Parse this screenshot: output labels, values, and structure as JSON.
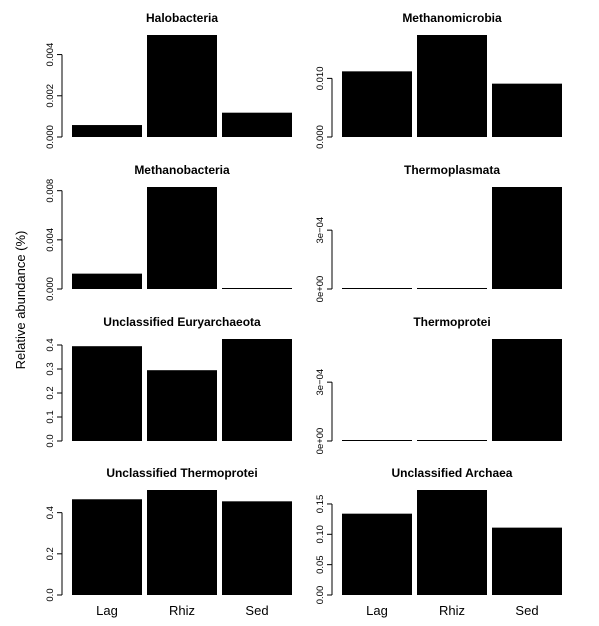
{
  "ylabel": "Relative abundance (%)",
  "colors": {
    "bar": "#000000",
    "background": "#ffffff"
  },
  "chart_data": [
    {
      "type": "bar",
      "title": "Halobacteria",
      "categories": [
        "Lag",
        "Rhiz",
        "Sed"
      ],
      "values": [
        0.00058,
        0.00495,
        0.00118
      ],
      "ylim": [
        0,
        0.00495
      ],
      "yticks": [
        0,
        0.002,
        0.004
      ],
      "yticklabels": [
        "0.000",
        "0.002",
        "0.004"
      ],
      "show_xticklabels": false
    },
    {
      "type": "bar",
      "title": "Methanomicrobia",
      "categories": [
        "Lag",
        "Rhiz",
        "Sed"
      ],
      "values": [
        0.0112,
        0.0174,
        0.0091
      ],
      "ylim": [
        0,
        0.0174
      ],
      "yticks": [
        0,
        0.01
      ],
      "yticklabels": [
        "0.000",
        "0.010"
      ],
      "show_xticklabels": false
    },
    {
      "type": "bar",
      "title": "Methanobacteria",
      "categories": [
        "Lag",
        "Rhiz",
        "Sed"
      ],
      "values": [
        0.00125,
        0.0083,
        0.0
      ],
      "ylim": [
        0,
        0.0083
      ],
      "yticks": [
        0,
        0.004,
        0.008
      ],
      "yticklabels": [
        "0.000",
        "0.004",
        "0.008"
      ],
      "show_xticklabels": false
    },
    {
      "type": "bar",
      "title": "Thermoplasmata",
      "categories": [
        "Lag",
        "Rhiz",
        "Sed"
      ],
      "values": [
        0.0,
        0.0,
        0.00052
      ],
      "ylim": [
        0,
        0.00052
      ],
      "yticks": [
        0,
        0.0003
      ],
      "yticklabels": [
        "0e+00",
        "3e−04"
      ],
      "show_xticklabels": false
    },
    {
      "type": "bar",
      "title": "Unclassified Euryarchaeota",
      "categories": [
        "Lag",
        "Rhiz",
        "Sed"
      ],
      "values": [
        0.395,
        0.295,
        0.425
      ],
      "ylim": [
        0,
        0.425
      ],
      "yticks": [
        0,
        0.1,
        0.2,
        0.3,
        0.4
      ],
      "yticklabels": [
        "0.0",
        "0.1",
        "0.2",
        "0.3",
        "0.4"
      ],
      "show_xticklabels": false
    },
    {
      "type": "bar",
      "title": "Thermoprotei",
      "categories": [
        "Lag",
        "Rhiz",
        "Sed"
      ],
      "values": [
        0.0,
        0.0,
        0.00052
      ],
      "ylim": [
        0,
        0.00052
      ],
      "yticks": [
        0,
        0.0003
      ],
      "yticklabels": [
        "0e+00",
        "3e−04"
      ],
      "show_xticklabels": false
    },
    {
      "type": "bar",
      "title": "Unclassified Thermoprotei",
      "categories": [
        "Lag",
        "Rhiz",
        "Sed"
      ],
      "values": [
        0.465,
        0.51,
        0.455
      ],
      "ylim": [
        0,
        0.51
      ],
      "yticks": [
        0,
        0.2,
        0.4
      ],
      "yticklabels": [
        "0.0",
        "0.2",
        "0.4"
      ],
      "show_xticklabels": true
    },
    {
      "type": "bar",
      "title": "Unclassified Archaea",
      "categories": [
        "Lag",
        "Rhiz",
        "Sed"
      ],
      "values": [
        0.134,
        0.173,
        0.111
      ],
      "ylim": [
        0,
        0.173
      ],
      "yticks": [
        0,
        0.05,
        0.1,
        0.15
      ],
      "yticklabels": [
        "0.00",
        "0.05",
        "0.10",
        "0.15"
      ],
      "show_xticklabels": true
    }
  ]
}
